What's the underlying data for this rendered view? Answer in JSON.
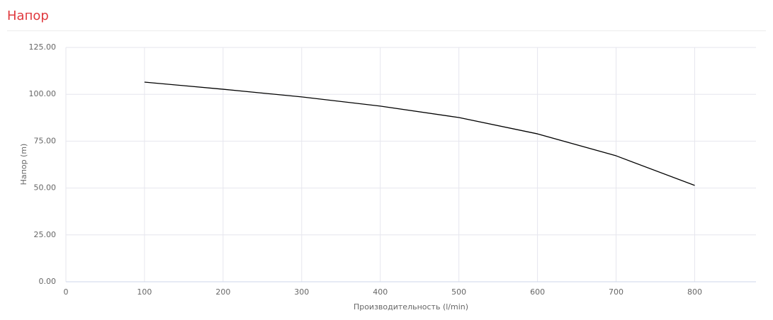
{
  "chart_data": {
    "type": "line",
    "title": "Напор",
    "x_label": "Производительность (l/min)",
    "y_label": "Напор (m)",
    "x": [
      100,
      200,
      300,
      400,
      500,
      600,
      700,
      800
    ],
    "series": [
      {
        "name": "Напор",
        "color": "#000000",
        "values": [
          106.5,
          102.7,
          98.6,
          93.7,
          87.6,
          78.9,
          67.2,
          51.4
        ]
      }
    ],
    "xlim": [
      0,
      878
    ],
    "xticks": [
      0,
      100,
      200,
      300,
      400,
      500,
      600,
      700,
      800
    ],
    "ylim": [
      0,
      125
    ],
    "yticks": [
      {
        "value": 0,
        "label": "0.00"
      },
      {
        "value": 25,
        "label": "25.00"
      },
      {
        "value": 50,
        "label": "50.00"
      },
      {
        "value": 75,
        "label": "75.00"
      },
      {
        "value": 100,
        "label": "100.00"
      },
      {
        "value": 125,
        "label": "125.00"
      }
    ],
    "grid": true
  }
}
